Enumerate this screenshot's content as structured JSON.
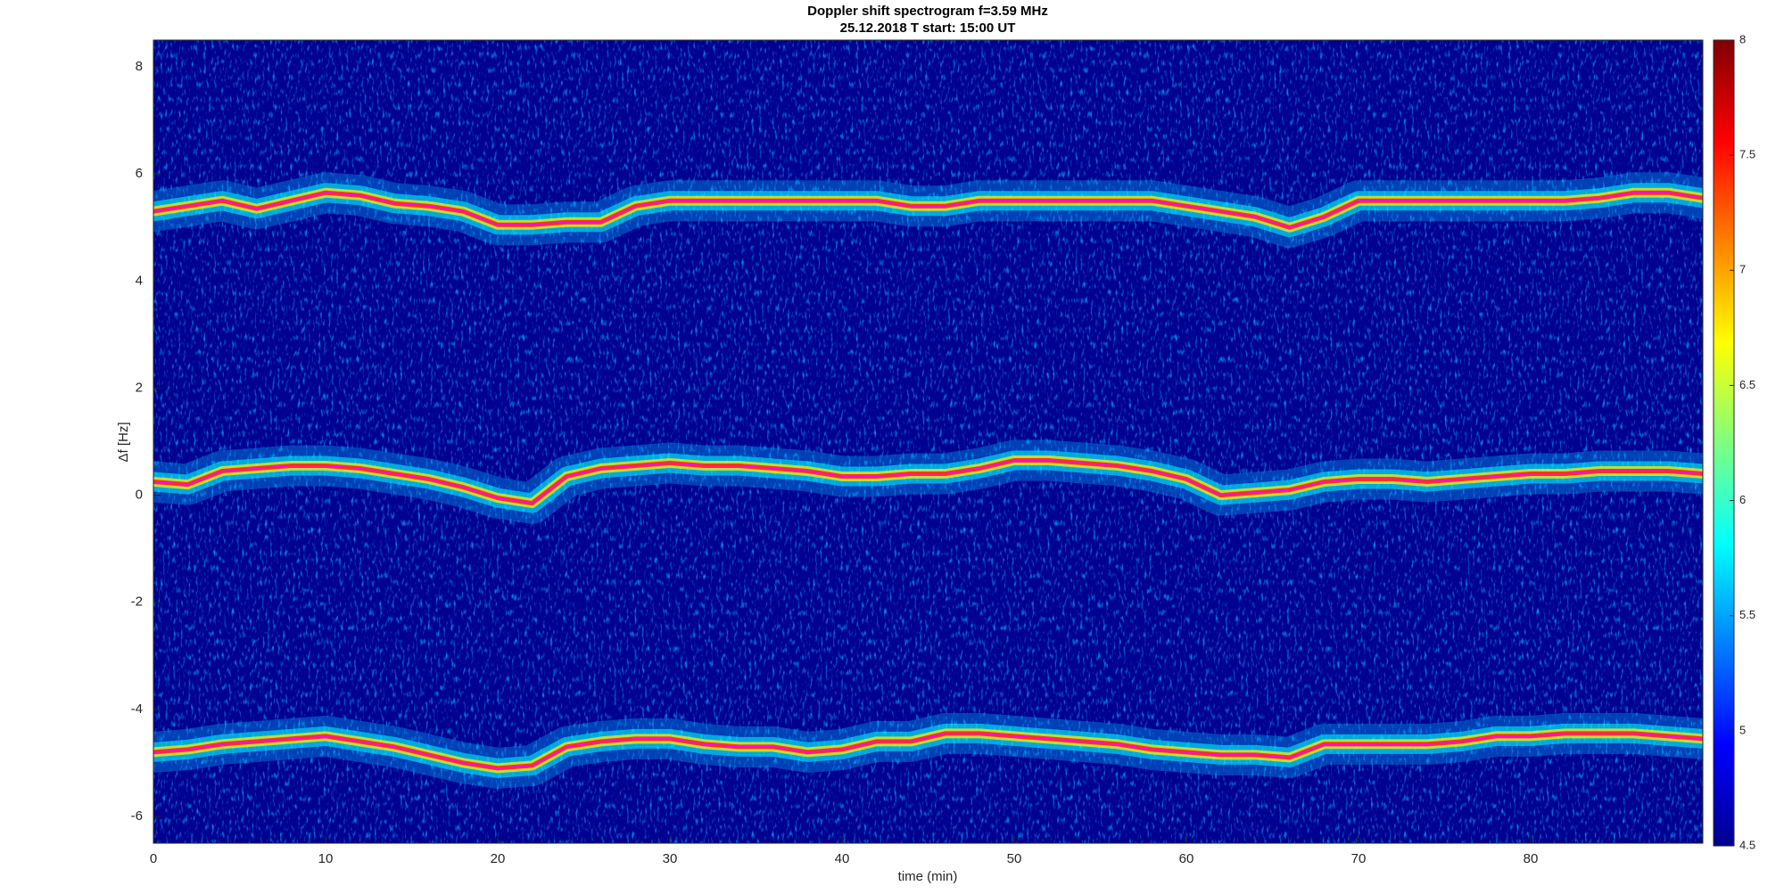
{
  "chart_data": {
    "type": "spectrogram",
    "title": "Doppler shift spectrogram f=3.59 MHz",
    "subtitle": "25.12.2018   T start: 15:00 UT",
    "x_label": "time (min)",
    "y_label": "Δf [Hz]",
    "xlim": [
      0,
      90
    ],
    "xticks": [
      0,
      10,
      20,
      30,
      40,
      50,
      60,
      70,
      80
    ],
    "ylim": [
      -6.5,
      8.5
    ],
    "yticks": [
      -6,
      -4,
      -2,
      0,
      2,
      4,
      6,
      8
    ],
    "colormap": "jet",
    "clim": [
      4.5,
      8
    ],
    "cticks": [
      4.5,
      5,
      5.5,
      6,
      6.5,
      7,
      7.5,
      8
    ],
    "background_color": "#00008f",
    "x": [
      0,
      2,
      4,
      6,
      8,
      10,
      12,
      14,
      16,
      18,
      20,
      22,
      24,
      26,
      28,
      30,
      32,
      34,
      36,
      38,
      40,
      42,
      44,
      46,
      48,
      50,
      52,
      54,
      56,
      58,
      60,
      62,
      64,
      66,
      68,
      70,
      72,
      74,
      76,
      78,
      80,
      82,
      84,
      86,
      88,
      90
    ],
    "series": [
      {
        "color": "#ff00ff",
        "values": [
          5.3,
          5.4,
          5.5,
          5.35,
          5.5,
          5.65,
          5.6,
          5.45,
          5.4,
          5.3,
          5.05,
          5.05,
          5.1,
          5.1,
          5.4,
          5.5,
          5.5,
          5.5,
          5.5,
          5.5,
          5.5,
          5.5,
          5.4,
          5.4,
          5.5,
          5.5,
          5.5,
          5.5,
          5.5,
          5.5,
          5.4,
          5.3,
          5.2,
          5.0,
          5.2,
          5.5,
          5.5,
          5.5,
          5.5,
          5.5,
          5.5,
          5.5,
          5.55,
          5.65,
          5.65,
          5.55
        ]
      },
      {
        "color": "#ff00ff",
        "values": [
          0.25,
          0.2,
          0.45,
          0.5,
          0.55,
          0.55,
          0.5,
          0.4,
          0.3,
          0.15,
          -0.05,
          -0.15,
          0.35,
          0.5,
          0.55,
          0.6,
          0.55,
          0.55,
          0.5,
          0.45,
          0.35,
          0.35,
          0.4,
          0.4,
          0.5,
          0.65,
          0.65,
          0.6,
          0.55,
          0.45,
          0.3,
          0,
          0.05,
          0.1,
          0.25,
          0.3,
          0.3,
          0.25,
          0.3,
          0.35,
          0.4,
          0.4,
          0.45,
          0.45,
          0.45,
          0.4
        ]
      },
      {
        "color": "#ff00ff",
        "values": [
          -4.8,
          -4.75,
          -4.65,
          -4.6,
          -4.55,
          -4.5,
          -4.6,
          -4.7,
          -4.85,
          -5.0,
          -5.1,
          -5.05,
          -4.7,
          -4.6,
          -4.55,
          -4.55,
          -4.65,
          -4.7,
          -4.7,
          -4.8,
          -4.75,
          -4.6,
          -4.6,
          -4.45,
          -4.45,
          -4.5,
          -4.55,
          -4.6,
          -4.65,
          -4.75,
          -4.8,
          -4.85,
          -4.85,
          -4.9,
          -4.65,
          -4.65,
          -4.65,
          -4.65,
          -4.6,
          -4.5,
          -4.5,
          -4.45,
          -4.45,
          -4.45,
          -4.5,
          -4.55
        ]
      }
    ]
  }
}
